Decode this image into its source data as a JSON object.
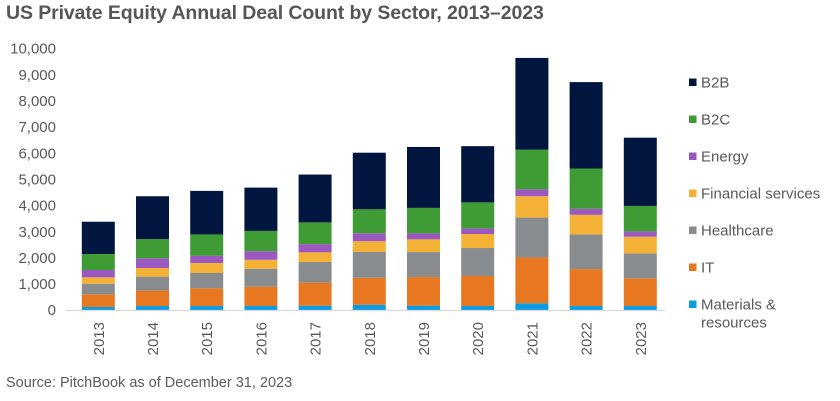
{
  "title": "US Private Equity Annual Deal Count by Sector, 2013–2023",
  "source": "Source: PitchBook as of December 31, 2023",
  "chart_data": {
    "type": "bar",
    "stacked": true,
    "title": "US Private Equity Annual Deal Count by Sector, 2013–2023",
    "xlabel": "",
    "ylabel": "",
    "ylim": [
      0,
      10000
    ],
    "yticks": [
      0,
      1000,
      2000,
      3000,
      4000,
      5000,
      6000,
      7000,
      8000,
      9000,
      10000
    ],
    "ytick_labels": [
      "0",
      "1,000",
      "2,000",
      "3,000",
      "4,000",
      "5,000",
      "6,000",
      "7,000",
      "8,000",
      "9,000",
      "10,000"
    ],
    "grid": false,
    "legend_position": "right",
    "categories": [
      "2013",
      "2014",
      "2015",
      "2016",
      "2017",
      "2018",
      "2019",
      "2020",
      "2021",
      "2022",
      "2023"
    ],
    "series": [
      {
        "name": "Materials & resources",
        "legend_lines": [
          "Materials &",
          "resources"
        ],
        "color": "#0A9BE0",
        "values": [
          115,
          155,
          155,
          155,
          165,
          200,
          165,
          155,
          255,
          155,
          155
        ]
      },
      {
        "name": "IT",
        "legend_lines": [
          "IT"
        ],
        "color": "#E87722",
        "values": [
          485,
          585,
          675,
          735,
          880,
          1030,
          1095,
          1145,
          1755,
          1410,
          1055
        ]
      },
      {
        "name": "Healthcare",
        "legend_lines": [
          "Healthcare"
        ],
        "color": "#898C8E",
        "values": [
          405,
          535,
          585,
          685,
          790,
          990,
          955,
          1070,
          1525,
          1325,
          955
        ]
      },
      {
        "name": "Financial services",
        "legend_lines": [
          "Financial services"
        ],
        "color": "#F3B235",
        "values": [
          245,
          330,
          380,
          345,
          370,
          410,
          485,
          535,
          815,
          750,
          635
        ]
      },
      {
        "name": "Energy",
        "legend_lines": [
          "Energy"
        ],
        "color": "#9B59C0",
        "values": [
          280,
          370,
          280,
          330,
          315,
          305,
          230,
          215,
          265,
          230,
          205
        ]
      },
      {
        "name": "B2C",
        "legend_lines": [
          "B2C"
        ],
        "color": "#3F9C35",
        "values": [
          610,
          735,
          815,
          775,
          830,
          915,
          975,
          995,
          1515,
          1540,
          975
        ]
      },
      {
        "name": "B2B",
        "legend_lines": [
          "B2B"
        ],
        "color": "#00163F",
        "values": [
          1235,
          1640,
          1665,
          1655,
          1830,
          2165,
          2330,
          2150,
          3510,
          3305,
          2610
        ]
      }
    ],
    "legend_order": [
      "B2B",
      "B2C",
      "Energy",
      "Financial services",
      "Healthcare",
      "IT",
      "Materials & resources"
    ]
  }
}
